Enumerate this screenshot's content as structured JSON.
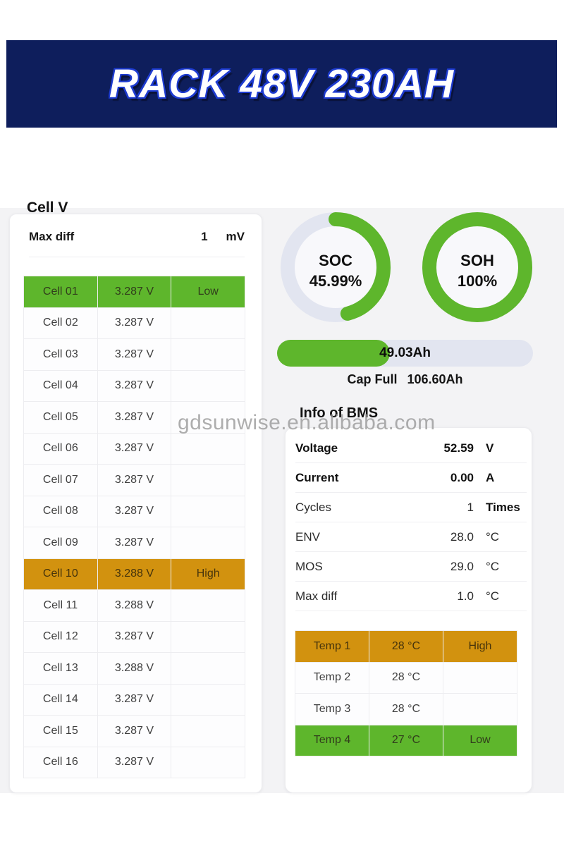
{
  "banner": {
    "title": "RACK 48V 230AH",
    "bg_color": "#0e1e5c",
    "glow_color": "#1d3bd0"
  },
  "watermark": {
    "text": "gdsunwise.en.alibaba.com"
  },
  "cell_panel": {
    "title": "Cell V",
    "max_diff": {
      "label": "Max diff",
      "value": "1",
      "unit": "mV"
    },
    "rows": [
      {
        "name": "Cell 01",
        "voltage": "3.287 V",
        "status": "Low",
        "highlight": "green"
      },
      {
        "name": "Cell 02",
        "voltage": "3.287 V",
        "status": ""
      },
      {
        "name": "Cell 03",
        "voltage": "3.287 V",
        "status": ""
      },
      {
        "name": "Cell 04",
        "voltage": "3.287 V",
        "status": ""
      },
      {
        "name": "Cell 05",
        "voltage": "3.287 V",
        "status": ""
      },
      {
        "name": "Cell 06",
        "voltage": "3.287 V",
        "status": ""
      },
      {
        "name": "Cell 07",
        "voltage": "3.287 V",
        "status": ""
      },
      {
        "name": "Cell 08",
        "voltage": "3.287 V",
        "status": ""
      },
      {
        "name": "Cell 09",
        "voltage": "3.287 V",
        "status": ""
      },
      {
        "name": "Cell 10",
        "voltage": "3.288 V",
        "status": "High",
        "highlight": "orange"
      },
      {
        "name": "Cell 11",
        "voltage": "3.288 V",
        "status": ""
      },
      {
        "name": "Cell 12",
        "voltage": "3.287 V",
        "status": ""
      },
      {
        "name": "Cell 13",
        "voltage": "3.288 V",
        "status": ""
      },
      {
        "name": "Cell 14",
        "voltage": "3.287 V",
        "status": ""
      },
      {
        "name": "Cell 15",
        "voltage": "3.287 V",
        "status": ""
      },
      {
        "name": "Cell 16",
        "voltage": "3.287 V",
        "status": ""
      }
    ]
  },
  "gauges": {
    "soc": {
      "label": "SOC",
      "value": "45.99%",
      "percent": 45.99
    },
    "soh": {
      "label": "SOH",
      "value": "100%",
      "percent": 100
    },
    "arc_color": "#5eb62c",
    "track_color": "#e2e5f0"
  },
  "capacity": {
    "remaining_label": "49.03Ah",
    "fill_percent": 44,
    "cap_full_label": "Cap Full",
    "cap_full_value": "106.60Ah"
  },
  "bms": {
    "title": "Info of BMS",
    "rows": [
      {
        "label": "Voltage",
        "value": "52.59",
        "unit": "V",
        "bold": true
      },
      {
        "label": "Current",
        "value": "0.00",
        "unit": "A",
        "bold": true
      },
      {
        "label": "Cycles",
        "value": "1",
        "unit": "Times",
        "unit_bold": true
      },
      {
        "label": "ENV",
        "value": "28.0",
        "unit": "°C"
      },
      {
        "label": "MOS",
        "value": "29.0",
        "unit": "°C"
      },
      {
        "label": "Max diff",
        "value": "1.0",
        "unit": "°C"
      }
    ],
    "temp_rows": [
      {
        "name": "Temp 1",
        "value": "28 °C",
        "status": "High",
        "highlight": "orange"
      },
      {
        "name": "Temp 2",
        "value": "28 °C",
        "status": ""
      },
      {
        "name": "Temp 3",
        "value": "28 °C",
        "status": ""
      },
      {
        "name": "Temp 4",
        "value": "27 °C",
        "status": "Low",
        "highlight": "green"
      }
    ]
  },
  "colors": {
    "green": "#5eb62c",
    "orange": "#d2920f",
    "navy": "#0e1e5c",
    "content_bg": "#f3f3f5"
  }
}
